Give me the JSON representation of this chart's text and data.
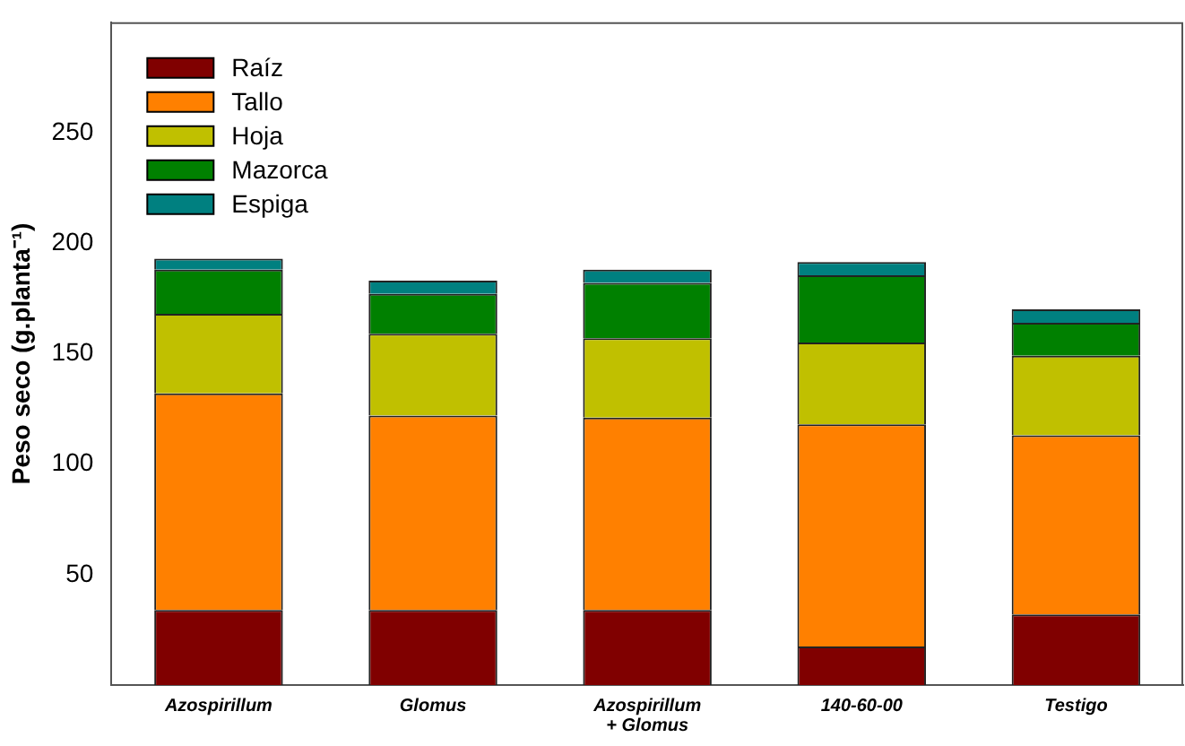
{
  "chart_data": {
    "type": "bar",
    "stacked": true,
    "ylabel": "Peso seco (g.planta⁻¹)",
    "categories": [
      "Azospirillum",
      "Glomus",
      "Azospirillum\n+ Glomus",
      "140-60-00",
      "Testigo"
    ],
    "series": [
      {
        "name": "Raíz",
        "color": "#800000",
        "values": [
          34,
          34,
          34,
          17.5,
          32
        ]
      },
      {
        "name": "Tallo",
        "color": "#ff8000",
        "values": [
          98,
          88,
          87,
          100.5,
          81
        ]
      },
      {
        "name": "Hoja",
        "color": "#c0c000",
        "values": [
          36,
          37,
          36,
          37,
          36
        ]
      },
      {
        "name": "Mazorca",
        "color": "#008000",
        "values": [
          20,
          18,
          25,
          30.5,
          15
        ]
      },
      {
        "name": "Espiga",
        "color": "#008080",
        "values": [
          5,
          6,
          6,
          6,
          6
        ]
      }
    ],
    "ylim": [
      0,
      300
    ],
    "yticks": [
      50,
      100,
      150,
      200,
      250
    ],
    "grid": false,
    "legend": "top left"
  }
}
